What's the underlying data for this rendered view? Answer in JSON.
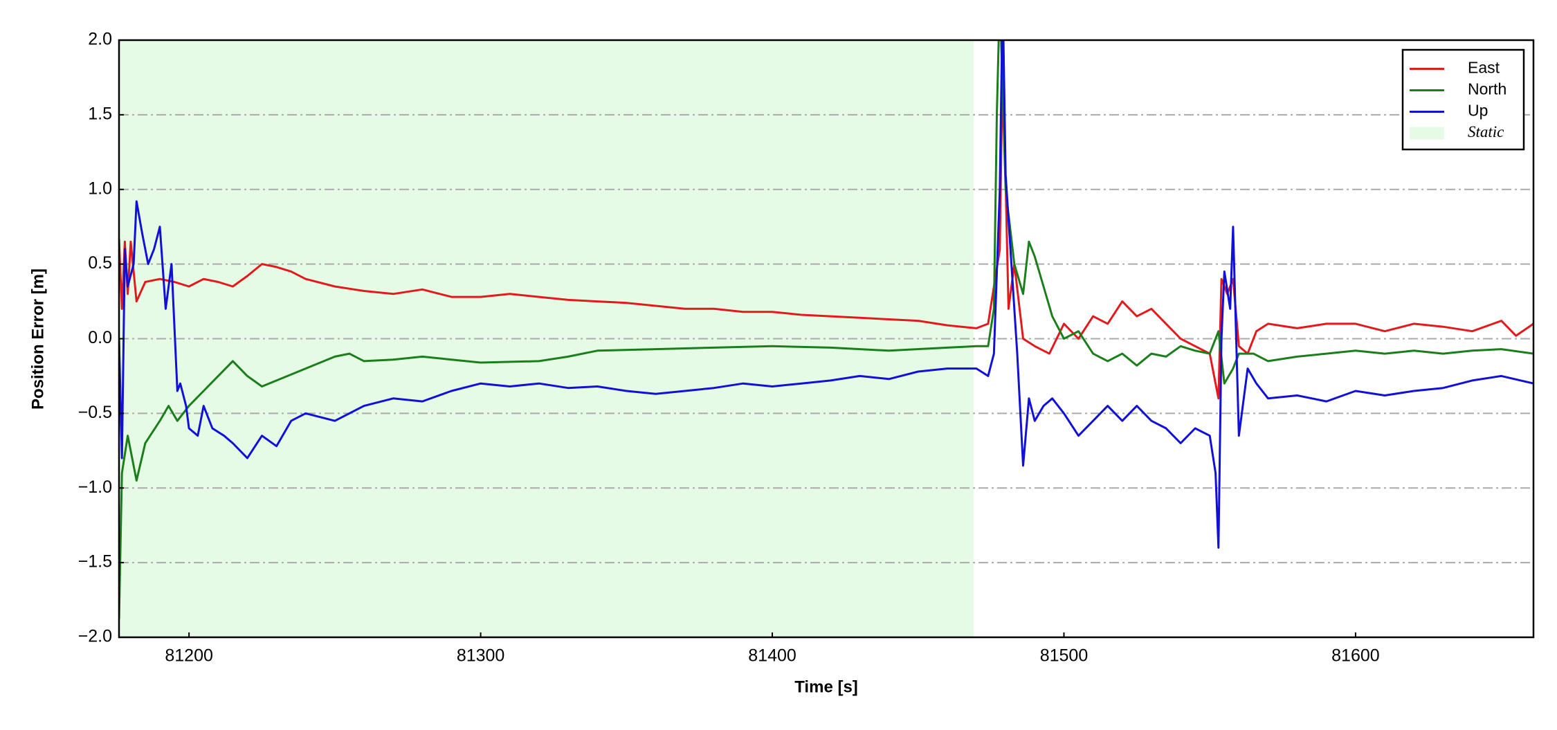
{
  "chart_data": {
    "type": "line",
    "xlabel": "Time [s]",
    "ylabel": "Position Error [m]",
    "xlim": [
      81176,
      81661
    ],
    "ylim": [
      -2,
      2
    ],
    "xticks": [
      81200,
      81300,
      81400,
      81500,
      81600
    ],
    "yticks": [
      {
        "value": -2,
        "label": "−2.0"
      },
      {
        "value": -1.5,
        "label": "−1.5"
      },
      {
        "value": -1,
        "label": "−1.0"
      },
      {
        "value": -0.5,
        "label": "−0.5"
      },
      {
        "value": 0,
        "label": "0.0"
      },
      0.5,
      {
        "value": 1,
        "label": "1.0"
      },
      1.5,
      {
        "value": 2,
        "label": "2.0"
      }
    ],
    "grid": true,
    "legend": "upper right",
    "shaded_regions": [
      {
        "name": "Static",
        "range": [
          81176,
          81469
        ],
        "color": "#e6fbe6"
      }
    ],
    "series": [
      {
        "name": "East",
        "color": "#e31a1c",
        "x": [
          81176,
          81177,
          81178,
          81179,
          81180,
          81182,
          81185,
          81190,
          81195,
          81200,
          81205,
          81210,
          81215,
          81220,
          81225,
          81230,
          81235,
          81240,
          81250,
          81260,
          81270,
          81280,
          81290,
          81300,
          81310,
          81320,
          81330,
          81340,
          81350,
          81360,
          81370,
          81380,
          81390,
          81400,
          81410,
          81420,
          81430,
          81440,
          81450,
          81460,
          81470,
          81474,
          81478,
          81479,
          81481,
          81483,
          81486,
          81490,
          81495,
          81500,
          81505,
          81510,
          81515,
          81520,
          81525,
          81530,
          81535,
          81540,
          81545,
          81550,
          81553,
          81554,
          81556,
          81558,
          81560,
          81563,
          81566,
          81570,
          81580,
          81590,
          81600,
          81610,
          81620,
          81630,
          81640,
          81650,
          81655,
          81661
        ],
        "values": [
          0.67,
          0.2,
          0.65,
          0.3,
          0.65,
          0.25,
          0.38,
          0.4,
          0.38,
          0.35,
          0.4,
          0.38,
          0.35,
          0.42,
          0.5,
          0.48,
          0.45,
          0.4,
          0.35,
          0.32,
          0.3,
          0.33,
          0.28,
          0.28,
          0.3,
          0.28,
          0.26,
          0.25,
          0.24,
          0.22,
          0.2,
          0.2,
          0.18,
          0.18,
          0.16,
          0.15,
          0.14,
          0.13,
          0.12,
          0.09,
          0.07,
          0.1,
          0.6,
          1.9,
          0.2,
          0.5,
          0.0,
          -0.05,
          -0.1,
          0.1,
          0.0,
          0.15,
          0.1,
          0.25,
          0.15,
          0.2,
          0.1,
          0.0,
          -0.05,
          -0.1,
          -0.4,
          0.4,
          0.3,
          0.4,
          -0.05,
          -0.1,
          0.05,
          0.1,
          0.07,
          0.1,
          0.1,
          0.05,
          0.1,
          0.08,
          0.05,
          0.12,
          0.02,
          0.1
        ]
      },
      {
        "name": "North",
        "color": "#1a7f1a",
        "x": [
          81176,
          81177,
          81179,
          81182,
          81185,
          81190,
          81193,
          81196,
          81200,
          81205,
          81210,
          81215,
          81220,
          81225,
          81230,
          81240,
          81250,
          81255,
          81260,
          81270,
          81280,
          81290,
          81300,
          81320,
          81330,
          81340,
          81360,
          81380,
          81400,
          81420,
          81440,
          81460,
          81470,
          81474,
          81476,
          81477,
          81478,
          81480,
          81483,
          81486,
          81488,
          81490,
          81493,
          81496,
          81500,
          81505,
          81510,
          81515,
          81520,
          81525,
          81530,
          81535,
          81540,
          81545,
          81550,
          81553,
          81555,
          81558,
          81560,
          81565,
          81570,
          81580,
          81590,
          81600,
          81610,
          81620,
          81630,
          81640,
          81650,
          81661
        ],
        "values": [
          -1.88,
          -0.9,
          -0.65,
          -0.95,
          -0.7,
          -0.55,
          -0.45,
          -0.55,
          -0.45,
          -0.35,
          -0.25,
          -0.15,
          -0.25,
          -0.32,
          -0.28,
          -0.2,
          -0.12,
          -0.1,
          -0.15,
          -0.14,
          -0.12,
          -0.14,
          -0.16,
          -0.15,
          -0.12,
          -0.08,
          -0.07,
          -0.06,
          -0.05,
          -0.06,
          -0.08,
          -0.06,
          -0.05,
          -0.05,
          0.2,
          1.5,
          2.3,
          1.0,
          0.5,
          0.3,
          0.65,
          0.55,
          0.35,
          0.15,
          0.0,
          0.05,
          -0.1,
          -0.15,
          -0.1,
          -0.18,
          -0.1,
          -0.12,
          -0.05,
          -0.08,
          -0.1,
          0.05,
          -0.3,
          -0.2,
          -0.1,
          -0.1,
          -0.15,
          -0.12,
          -0.1,
          -0.08,
          -0.1,
          -0.08,
          -0.1,
          -0.08,
          -0.07,
          -0.1
        ]
      },
      {
        "name": "Up",
        "color": "#1010d8",
        "x": [
          81176,
          81177,
          81178,
          81179,
          81181,
          81182,
          81184,
          81186,
          81188,
          81190,
          81192,
          81194,
          81196,
          81197,
          81199,
          81200,
          81203,
          81205,
          81208,
          81212,
          81215,
          81220,
          81225,
          81230,
          81235,
          81240,
          81250,
          81260,
          81270,
          81280,
          81290,
          81300,
          81310,
          81320,
          81330,
          81340,
          81350,
          81360,
          81370,
          81380,
          81390,
          81400,
          81410,
          81420,
          81430,
          81440,
          81450,
          81460,
          81470,
          81474,
          81476,
          81478,
          81479,
          81480,
          81482,
          81484,
          81486,
          81488,
          81490,
          81493,
          81496,
          81500,
          81505,
          81510,
          81515,
          81520,
          81525,
          81530,
          81535,
          81540,
          81545,
          81550,
          81552,
          81553,
          81554,
          81555,
          81557,
          81558,
          81560,
          81563,
          81566,
          81570,
          81580,
          81590,
          81600,
          81610,
          81620,
          81630,
          81640,
          81650,
          81661
        ],
        "values": [
          0.0,
          -0.8,
          0.6,
          0.35,
          0.5,
          0.92,
          0.7,
          0.5,
          0.6,
          0.75,
          0.2,
          0.5,
          -0.35,
          -0.3,
          -0.45,
          -0.6,
          -0.65,
          -0.45,
          -0.6,
          -0.65,
          -0.7,
          -0.8,
          -0.65,
          -0.72,
          -0.55,
          -0.5,
          -0.55,
          -0.45,
          -0.4,
          -0.42,
          -0.35,
          -0.3,
          -0.32,
          -0.3,
          -0.33,
          -0.32,
          -0.35,
          -0.37,
          -0.35,
          -0.33,
          -0.3,
          -0.32,
          -0.3,
          -0.28,
          -0.25,
          -0.27,
          -0.22,
          -0.2,
          -0.2,
          -0.25,
          -0.1,
          1.0,
          2.3,
          1.1,
          0.5,
          -0.1,
          -0.85,
          -0.4,
          -0.55,
          -0.45,
          -0.4,
          -0.5,
          -0.65,
          -0.55,
          -0.45,
          -0.55,
          -0.45,
          -0.55,
          -0.6,
          -0.7,
          -0.6,
          -0.65,
          -0.9,
          -1.4,
          0.0,
          0.45,
          0.2,
          0.75,
          -0.65,
          -0.2,
          -0.3,
          -0.4,
          -0.38,
          -0.42,
          -0.35,
          -0.38,
          -0.35,
          -0.33,
          -0.28,
          -0.25,
          -0.3
        ]
      }
    ]
  }
}
